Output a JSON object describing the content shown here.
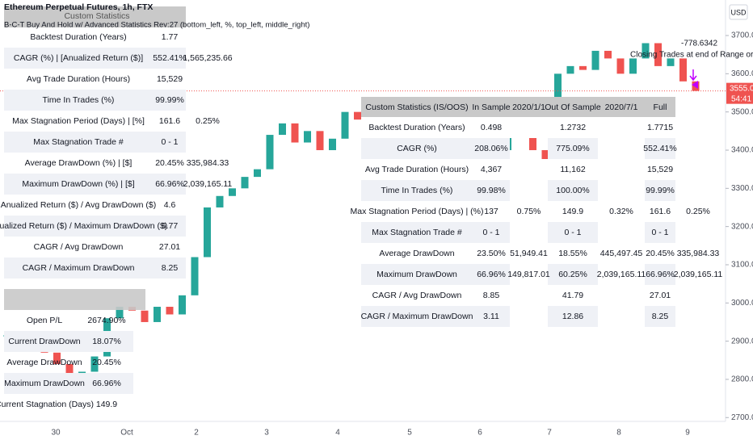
{
  "header": {
    "title": "Ethereum Perpetual Futures, 1h, FTX",
    "indicator": "B-C-T Buy And Hold w/ Advanced Statistics Rev:27 (bottom_left, %, top_left, middle_right)",
    "currency": "USD"
  },
  "chart_data": {
    "type": "candlestick",
    "close": [
      2915,
      2880,
      2920,
      2870,
      2840,
      2810,
      2820,
      2860,
      2960,
      2990,
      2980,
      2950,
      2990,
      2970,
      3020,
      3120,
      3250,
      3280,
      3300,
      3330,
      3350,
      3440,
      3470,
      3420,
      3450,
      3400,
      3430,
      3500,
      3480,
      3420,
      3380,
      3410,
      3360,
      3340,
      3390,
      3420,
      3370,
      3360,
      3320,
      3400,
      3450,
      3500,
      3400,
      3360,
      3600,
      3620,
      3610,
      3660,
      3640,
      3600,
      3640,
      3680,
      3620,
      3640,
      3580,
      3555
    ],
    "colors": {
      "up": "#26a69a",
      "down": "#ef5350"
    },
    "ylim": [
      2690,
      3793
    ],
    "yticks": [
      {
        "value": 2700,
        "label": "2700.0"
      },
      {
        "value": 2800,
        "label": "2800.0"
      },
      {
        "value": 2900,
        "label": "2900.0"
      },
      {
        "value": 3000,
        "label": "3000.0"
      },
      {
        "value": 3100,
        "label": "3100.0"
      },
      {
        "value": 3200,
        "label": "3200.0"
      },
      {
        "value": 3300,
        "label": "3300.0"
      },
      {
        "value": 3400,
        "label": "3400.0"
      },
      {
        "value": 3500,
        "label": "3500.0"
      },
      {
        "value": 3600,
        "label": "3600.0"
      },
      {
        "value": 3700,
        "label": "3700.0"
      }
    ],
    "xtick_labels": [
      "30",
      "Oct",
      "2",
      "3",
      "4",
      "5",
      "6",
      "7",
      "8",
      "9"
    ],
    "last_price": {
      "value": 3555,
      "label": "3555.0"
    },
    "countdown": "54:41",
    "annotations": [
      "-778.6342",
      "Closing Trades at end of Range or Bac"
    ]
  },
  "stats_table": {
    "header": "Custom Statistics",
    "rows": [
      [
        "Backtest Duration (Years)",
        "1.77",
        null
      ],
      [
        "CAGR (%) | [Anualized Return ($)]",
        "552.41%",
        "1,565,235.66"
      ],
      [
        "Avg Trade Duration (Hours)",
        "15,529",
        null
      ],
      [
        "Time In Trades (%)",
        "99.99%",
        null
      ],
      [
        "Max Stagnation Period (Days) | [%]",
        "161.6",
        "0.25%"
      ],
      [
        "Max Stagnation Trade #",
        "0 - 1",
        null
      ],
      [
        "Average DrawDown (%) | [$]",
        "20.45%",
        "335,984.33"
      ],
      [
        "Maximum DrawDown (%) | [$]",
        "66.96%",
        "2,039,165.11"
      ],
      [
        "Anualized Return ($) / Avg DrawDown ($)",
        "4.6",
        null
      ],
      [
        "Anualized Return ($) / Maximum DrawDown ($)",
        "6.77",
        null
      ],
      [
        "CAGR / Avg DrawDown",
        "27.01",
        null
      ],
      [
        "CAGR / Maximum DrawDown",
        "8.25",
        null
      ]
    ]
  },
  "current_table": {
    "rows": [
      [
        "Open P/L",
        "2674.90%"
      ],
      [
        "Current DrawDown",
        "18.07%"
      ],
      [
        "Average DrawDown",
        "20.45%"
      ],
      [
        "Maximum DrawDown",
        "66.96%"
      ],
      [
        "Current Stagnation (Days)",
        "149.9"
      ]
    ]
  },
  "split_table": {
    "header": [
      "Custom Statistics (IS/OOS)",
      "In Sample",
      "2020/1/1",
      "Out Of Sample",
      "2020/7/1",
      "Full"
    ],
    "rows": [
      [
        "Backtest Duration (Years)",
        "0.498",
        null,
        "1.2732",
        null,
        "1.7715",
        null
      ],
      [
        "CAGR (%)",
        "208.06%",
        null,
        "775.09%",
        null,
        "552.41%",
        null
      ],
      [
        "Avg Trade Duration (Hours)",
        "4,367",
        null,
        "11,162",
        null,
        "15,529",
        null
      ],
      [
        "Time In Trades (%)",
        "99.98%",
        null,
        "100.00%",
        null,
        "99.99%",
        null
      ],
      [
        "Max Stagnation Period (Days) | (%)",
        "137",
        "0.75%",
        "149.9",
        "0.32%",
        "161.6",
        "0.25%"
      ],
      [
        "Max Stagnation Trade #",
        "0 - 1",
        null,
        "0 - 1",
        null,
        "0 - 1",
        null
      ],
      [
        "Average DrawDown",
        "23.50%",
        "51,949.41",
        "18.55%",
        "445,497.45",
        "20.45%",
        "335,984.33"
      ],
      [
        "Maximum DrawDown",
        "66.96%",
        "149,817.01",
        "60.25%",
        "2,039,165.11",
        "66.96%",
        "2,039,165.11"
      ],
      [
        "CAGR / Avg DrawDown",
        "8.85",
        null,
        "41.79",
        null,
        "27.01",
        null
      ],
      [
        "CAGR / Maximum DrawDown",
        "3.11",
        null,
        "12.86",
        null,
        "8.25",
        null
      ]
    ]
  }
}
